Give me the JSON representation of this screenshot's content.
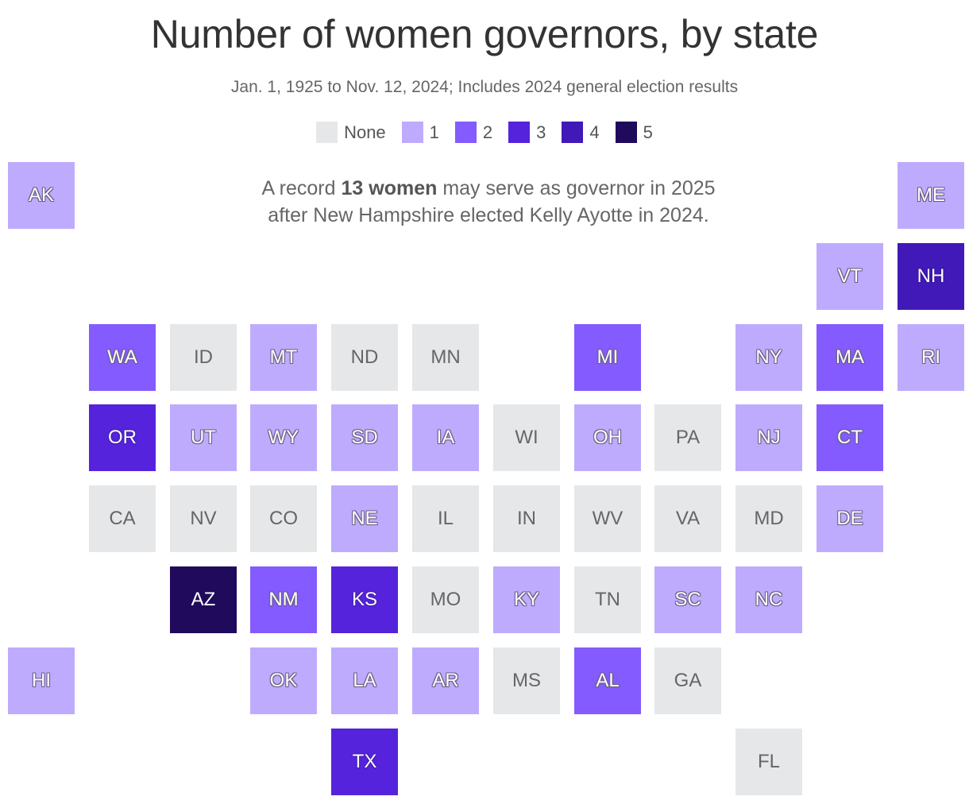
{
  "title": "Number of women governors, by state",
  "subtitle": "Jan. 1, 1925 to Nov. 12, 2024; Includes 2024 general election results",
  "legend": [
    {
      "label": "None",
      "value": 0,
      "color": "#e6e7e9"
    },
    {
      "label": "1",
      "value": 1,
      "color": "#bfabfe"
    },
    {
      "label": "2",
      "value": 2,
      "color": "#835bfe"
    },
    {
      "label": "3",
      "value": 3,
      "color": "#5523dc"
    },
    {
      "label": "4",
      "value": 4,
      "color": "#4019b8"
    },
    {
      "label": "5",
      "value": 5,
      "color": "#1f0a5c"
    }
  ],
  "annotation": {
    "line1_pre": "A record ",
    "line1_bold": "13 women",
    "line1_post": " may serve as governor in 2025",
    "line2": "after New Hampshire elected Kelly Ayotte in 2024."
  },
  "chart_data": {
    "type": "tile-grid-map",
    "metric": "Number of women governors",
    "states": [
      {
        "abbr": "AK",
        "row": 0,
        "col": 0,
        "value": 1
      },
      {
        "abbr": "ME",
        "row": 0,
        "col": 11,
        "value": 1
      },
      {
        "abbr": "VT",
        "row": 1,
        "col": 10,
        "value": 1
      },
      {
        "abbr": "NH",
        "row": 1,
        "col": 11,
        "value": 4
      },
      {
        "abbr": "WA",
        "row": 2,
        "col": 1,
        "value": 2
      },
      {
        "abbr": "ID",
        "row": 2,
        "col": 2,
        "value": 0
      },
      {
        "abbr": "MT",
        "row": 2,
        "col": 3,
        "value": 1
      },
      {
        "abbr": "ND",
        "row": 2,
        "col": 4,
        "value": 0
      },
      {
        "abbr": "MN",
        "row": 2,
        "col": 5,
        "value": 0
      },
      {
        "abbr": "MI",
        "row": 2,
        "col": 7,
        "value": 2
      },
      {
        "abbr": "NY",
        "row": 2,
        "col": 9,
        "value": 1
      },
      {
        "abbr": "MA",
        "row": 2,
        "col": 10,
        "value": 2
      },
      {
        "abbr": "RI",
        "row": 2,
        "col": 11,
        "value": 1
      },
      {
        "abbr": "OR",
        "row": 3,
        "col": 1,
        "value": 3
      },
      {
        "abbr": "UT",
        "row": 3,
        "col": 2,
        "value": 1
      },
      {
        "abbr": "WY",
        "row": 3,
        "col": 3,
        "value": 1
      },
      {
        "abbr": "SD",
        "row": 3,
        "col": 4,
        "value": 1
      },
      {
        "abbr": "IA",
        "row": 3,
        "col": 5,
        "value": 1
      },
      {
        "abbr": "WI",
        "row": 3,
        "col": 6,
        "value": 0
      },
      {
        "abbr": "OH",
        "row": 3,
        "col": 7,
        "value": 1
      },
      {
        "abbr": "PA",
        "row": 3,
        "col": 8,
        "value": 0
      },
      {
        "abbr": "NJ",
        "row": 3,
        "col": 9,
        "value": 1
      },
      {
        "abbr": "CT",
        "row": 3,
        "col": 10,
        "value": 2
      },
      {
        "abbr": "CA",
        "row": 4,
        "col": 1,
        "value": 0
      },
      {
        "abbr": "NV",
        "row": 4,
        "col": 2,
        "value": 0
      },
      {
        "abbr": "CO",
        "row": 4,
        "col": 3,
        "value": 0
      },
      {
        "abbr": "NE",
        "row": 4,
        "col": 4,
        "value": 1
      },
      {
        "abbr": "IL",
        "row": 4,
        "col": 5,
        "value": 0
      },
      {
        "abbr": "IN",
        "row": 4,
        "col": 6,
        "value": 0
      },
      {
        "abbr": "WV",
        "row": 4,
        "col": 7,
        "value": 0
      },
      {
        "abbr": "VA",
        "row": 4,
        "col": 8,
        "value": 0
      },
      {
        "abbr": "MD",
        "row": 4,
        "col": 9,
        "value": 0
      },
      {
        "abbr": "DE",
        "row": 4,
        "col": 10,
        "value": 1
      },
      {
        "abbr": "AZ",
        "row": 5,
        "col": 2,
        "value": 5
      },
      {
        "abbr": "NM",
        "row": 5,
        "col": 3,
        "value": 2
      },
      {
        "abbr": "KS",
        "row": 5,
        "col": 4,
        "value": 3
      },
      {
        "abbr": "MO",
        "row": 5,
        "col": 5,
        "value": 0
      },
      {
        "abbr": "KY",
        "row": 5,
        "col": 6,
        "value": 1
      },
      {
        "abbr": "TN",
        "row": 5,
        "col": 7,
        "value": 0
      },
      {
        "abbr": "SC",
        "row": 5,
        "col": 8,
        "value": 1
      },
      {
        "abbr": "NC",
        "row": 5,
        "col": 9,
        "value": 1
      },
      {
        "abbr": "HI",
        "row": 6,
        "col": 0,
        "value": 1
      },
      {
        "abbr": "OK",
        "row": 6,
        "col": 3,
        "value": 1
      },
      {
        "abbr": "LA",
        "row": 6,
        "col": 4,
        "value": 1
      },
      {
        "abbr": "AR",
        "row": 6,
        "col": 5,
        "value": 1
      },
      {
        "abbr": "MS",
        "row": 6,
        "col": 6,
        "value": 0
      },
      {
        "abbr": "AL",
        "row": 6,
        "col": 7,
        "value": 2
      },
      {
        "abbr": "GA",
        "row": 6,
        "col": 8,
        "value": 0
      },
      {
        "abbr": "TX",
        "row": 7,
        "col": 4,
        "value": 3
      },
      {
        "abbr": "FL",
        "row": 7,
        "col": 9,
        "value": 0
      }
    ]
  }
}
